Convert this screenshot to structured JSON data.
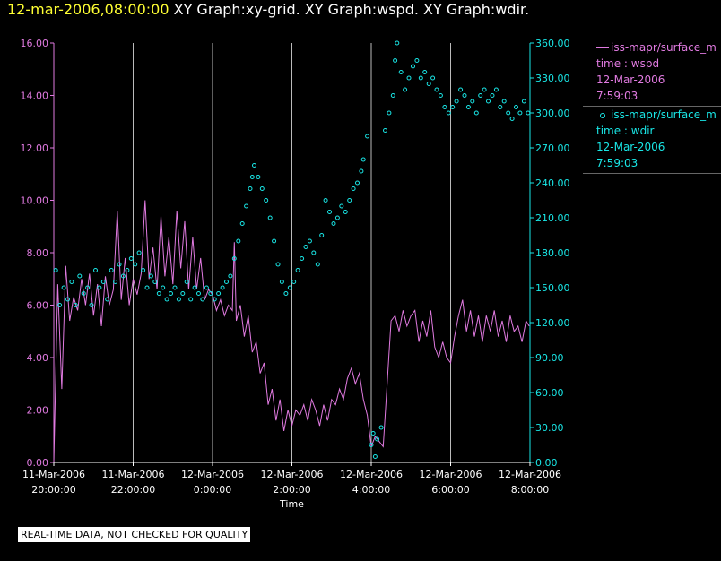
{
  "header": {
    "date_time": "12-mar-2006,08:00:00",
    "graphs": "XY Graph:xy-grid.  XY Graph:wspd.  XY Graph:wdir."
  },
  "legend": {
    "series1": {
      "name": "iss-mapr/surface_m",
      "line1": "time : wspd",
      "line2": "12-Mar-2006",
      "line3": "7:59:03"
    },
    "series2": {
      "name": "iss-mapr/surface_m",
      "line1": "time : wdir",
      "line2": "12-Mar-2006",
      "line3": "7:59:03"
    }
  },
  "footer": {
    "notice": "REAL-TIME DATA, NOT CHECKED FOR QUALITY"
  },
  "colors": {
    "wspd": "#e07ae0",
    "wdir": "#19e6e6",
    "grid": "#bbbbbb",
    "title": "#ffff33"
  },
  "chart_data": {
    "type": "line",
    "xlabel": "Time",
    "x_range_hours": [
      -4.0,
      8.0
    ],
    "x_ticks": [
      {
        "h": -4,
        "date": "11-Mar-2006",
        "time": "20:00:00"
      },
      {
        "h": -2,
        "date": "11-Mar-2006",
        "time": "22:00:00"
      },
      {
        "h": 0,
        "date": "12-Mar-2006",
        "time": "0:00:00"
      },
      {
        "h": 2,
        "date": "12-Mar-2006",
        "time": "2:00:00"
      },
      {
        "h": 4,
        "date": "12-Mar-2006",
        "time": "4:00:00"
      },
      {
        "h": 6,
        "date": "12-Mar-2006",
        "time": "6:00:00"
      },
      {
        "h": 8,
        "date": "12-Mar-2006",
        "time": "8:00:00"
      }
    ],
    "y_left": {
      "ylim": [
        0,
        16
      ],
      "ticks": [
        "0.00",
        "2.00",
        "4.00",
        "6.00",
        "8.00",
        "10.00",
        "12.00",
        "14.00",
        "16.00"
      ]
    },
    "y_right": {
      "ylim": [
        0,
        360
      ],
      "ticks": [
        "0.00",
        "30.00",
        "60.00",
        "90.00",
        "120.00",
        "150.00",
        "180.00",
        "210.00",
        "240.00",
        "270.00",
        "300.00",
        "330.00",
        "360.00"
      ]
    },
    "grid": "vertical",
    "series": [
      {
        "name": "wspd",
        "axis": "left",
        "style": "line",
        "points": [
          [
            -4.0,
            0.0
          ],
          [
            -3.9,
            6.8
          ],
          [
            -3.8,
            2.8
          ],
          [
            -3.7,
            7.5
          ],
          [
            -3.6,
            5.4
          ],
          [
            -3.5,
            6.3
          ],
          [
            -3.4,
            5.8
          ],
          [
            -3.3,
            7.0
          ],
          [
            -3.2,
            6.0
          ],
          [
            -3.1,
            7.2
          ],
          [
            -3.0,
            5.6
          ],
          [
            -2.9,
            6.8
          ],
          [
            -2.8,
            5.2
          ],
          [
            -2.7,
            7.1
          ],
          [
            -2.6,
            6.0
          ],
          [
            -2.5,
            6.6
          ],
          [
            -2.4,
            9.6
          ],
          [
            -2.3,
            6.2
          ],
          [
            -2.2,
            7.8
          ],
          [
            -2.1,
            6.0
          ],
          [
            -2.0,
            7.0
          ],
          [
            -1.9,
            6.4
          ],
          [
            -1.8,
            7.2
          ],
          [
            -1.7,
            10.0
          ],
          [
            -1.6,
            7.0
          ],
          [
            -1.5,
            8.2
          ],
          [
            -1.4,
            6.6
          ],
          [
            -1.3,
            9.4
          ],
          [
            -1.2,
            7.1
          ],
          [
            -1.1,
            8.6
          ],
          [
            -1.0,
            6.8
          ],
          [
            -0.9,
            9.6
          ],
          [
            -0.8,
            7.4
          ],
          [
            -0.7,
            9.2
          ],
          [
            -0.6,
            6.6
          ],
          [
            -0.5,
            8.6
          ],
          [
            -0.4,
            6.6
          ],
          [
            -0.3,
            7.8
          ],
          [
            -0.2,
            6.2
          ],
          [
            -0.1,
            6.6
          ],
          [
            0.0,
            6.4
          ],
          [
            0.1,
            5.8
          ],
          [
            0.2,
            6.2
          ],
          [
            0.3,
            5.6
          ],
          [
            0.4,
            6.0
          ],
          [
            0.5,
            5.8
          ],
          [
            0.55,
            8.4
          ],
          [
            0.6,
            5.4
          ],
          [
            0.7,
            6.0
          ],
          [
            0.8,
            4.8
          ],
          [
            0.9,
            5.6
          ],
          [
            1.0,
            4.2
          ],
          [
            1.1,
            4.6
          ],
          [
            1.2,
            3.4
          ],
          [
            1.3,
            3.8
          ],
          [
            1.4,
            2.2
          ],
          [
            1.5,
            2.8
          ],
          [
            1.6,
            1.6
          ],
          [
            1.7,
            2.4
          ],
          [
            1.8,
            1.2
          ],
          [
            1.9,
            2.0
          ],
          [
            2.0,
            1.4
          ],
          [
            2.1,
            2.0
          ],
          [
            2.2,
            1.8
          ],
          [
            2.3,
            2.2
          ],
          [
            2.4,
            1.6
          ],
          [
            2.5,
            2.4
          ],
          [
            2.6,
            2.0
          ],
          [
            2.7,
            1.4
          ],
          [
            2.8,
            2.2
          ],
          [
            2.9,
            1.6
          ],
          [
            3.0,
            2.4
          ],
          [
            3.1,
            2.2
          ],
          [
            3.2,
            2.8
          ],
          [
            3.3,
            2.4
          ],
          [
            3.4,
            3.2
          ],
          [
            3.5,
            3.6
          ],
          [
            3.6,
            3.0
          ],
          [
            3.7,
            3.4
          ],
          [
            3.8,
            2.4
          ],
          [
            3.9,
            1.8
          ],
          [
            4.0,
            0.6
          ],
          [
            4.1,
            1.0
          ],
          [
            4.2,
            0.8
          ],
          [
            4.3,
            0.6
          ],
          [
            4.4,
            3.0
          ],
          [
            4.5,
            5.4
          ],
          [
            4.6,
            5.6
          ],
          [
            4.7,
            5.0
          ],
          [
            4.8,
            5.8
          ],
          [
            4.9,
            5.2
          ],
          [
            5.0,
            5.6
          ],
          [
            5.1,
            5.8
          ],
          [
            5.2,
            4.6
          ],
          [
            5.3,
            5.4
          ],
          [
            5.4,
            4.8
          ],
          [
            5.5,
            5.8
          ],
          [
            5.6,
            4.4
          ],
          [
            5.7,
            4.0
          ],
          [
            5.8,
            4.6
          ],
          [
            5.9,
            4.0
          ],
          [
            6.0,
            3.8
          ],
          [
            6.1,
            4.8
          ],
          [
            6.2,
            5.6
          ],
          [
            6.3,
            6.2
          ],
          [
            6.4,
            5.0
          ],
          [
            6.5,
            5.8
          ],
          [
            6.6,
            4.8
          ],
          [
            6.7,
            5.6
          ],
          [
            6.8,
            4.6
          ],
          [
            6.9,
            5.6
          ],
          [
            7.0,
            5.0
          ],
          [
            7.1,
            5.8
          ],
          [
            7.2,
            4.8
          ],
          [
            7.3,
            5.4
          ],
          [
            7.4,
            4.6
          ],
          [
            7.5,
            5.6
          ],
          [
            7.6,
            5.0
          ],
          [
            7.7,
            5.2
          ],
          [
            7.8,
            4.6
          ],
          [
            7.9,
            5.4
          ],
          [
            7.98,
            5.2
          ]
        ]
      },
      {
        "name": "wdir",
        "axis": "right",
        "style": "circles",
        "points": [
          [
            -3.95,
            165
          ],
          [
            -3.85,
            135
          ],
          [
            -3.75,
            150
          ],
          [
            -3.65,
            140
          ],
          [
            -3.55,
            155
          ],
          [
            -3.45,
            135
          ],
          [
            -3.35,
            160
          ],
          [
            -3.25,
            145
          ],
          [
            -3.15,
            150
          ],
          [
            -3.05,
            135
          ],
          [
            -2.95,
            165
          ],
          [
            -2.85,
            150
          ],
          [
            -2.75,
            155
          ],
          [
            -2.65,
            140
          ],
          [
            -2.55,
            165
          ],
          [
            -2.45,
            155
          ],
          [
            -2.35,
            170
          ],
          [
            -2.25,
            160
          ],
          [
            -2.15,
            165
          ],
          [
            -2.05,
            175
          ],
          [
            -1.95,
            170
          ],
          [
            -1.85,
            180
          ],
          [
            -1.75,
            165
          ],
          [
            -1.65,
            150
          ],
          [
            -1.55,
            160
          ],
          [
            -1.45,
            155
          ],
          [
            -1.35,
            145
          ],
          [
            -1.25,
            150
          ],
          [
            -1.15,
            140
          ],
          [
            -1.05,
            145
          ],
          [
            -0.95,
            150
          ],
          [
            -0.85,
            140
          ],
          [
            -0.75,
            145
          ],
          [
            -0.65,
            155
          ],
          [
            -0.55,
            140
          ],
          [
            -0.45,
            150
          ],
          [
            -0.35,
            145
          ],
          [
            -0.25,
            140
          ],
          [
            -0.15,
            150
          ],
          [
            -0.05,
            145
          ],
          [
            0.05,
            140
          ],
          [
            0.15,
            145
          ],
          [
            0.25,
            150
          ],
          [
            0.35,
            155
          ],
          [
            0.45,
            160
          ],
          [
            0.55,
            175
          ],
          [
            0.65,
            190
          ],
          [
            0.75,
            205
          ],
          [
            0.85,
            220
          ],
          [
            0.95,
            235
          ],
          [
            1.0,
            245
          ],
          [
            1.05,
            255
          ],
          [
            1.15,
            245
          ],
          [
            1.25,
            235
          ],
          [
            1.35,
            225
          ],
          [
            1.45,
            210
          ],
          [
            1.55,
            190
          ],
          [
            1.65,
            170
          ],
          [
            1.75,
            155
          ],
          [
            1.85,
            145
          ],
          [
            1.95,
            150
          ],
          [
            2.05,
            155
          ],
          [
            2.15,
            165
          ],
          [
            2.25,
            175
          ],
          [
            2.35,
            185
          ],
          [
            2.45,
            190
          ],
          [
            2.55,
            180
          ],
          [
            2.65,
            170
          ],
          [
            2.75,
            195
          ],
          [
            2.85,
            225
          ],
          [
            2.95,
            215
          ],
          [
            3.05,
            205
          ],
          [
            3.15,
            210
          ],
          [
            3.25,
            220
          ],
          [
            3.35,
            215
          ],
          [
            3.45,
            225
          ],
          [
            3.55,
            235
          ],
          [
            3.65,
            240
          ],
          [
            3.75,
            250
          ],
          [
            3.8,
            260
          ],
          [
            3.9,
            280
          ],
          [
            4.0,
            15
          ],
          [
            4.05,
            25
          ],
          [
            4.1,
            5
          ],
          [
            4.15,
            20
          ],
          [
            4.25,
            30
          ],
          [
            4.35,
            285
          ],
          [
            4.45,
            300
          ],
          [
            4.55,
            315
          ],
          [
            4.6,
            345
          ],
          [
            4.65,
            360
          ],
          [
            4.75,
            335
          ],
          [
            4.85,
            320
          ],
          [
            4.95,
            330
          ],
          [
            5.05,
            340
          ],
          [
            5.15,
            345
          ],
          [
            5.25,
            330
          ],
          [
            5.35,
            335
          ],
          [
            5.45,
            325
          ],
          [
            5.55,
            330
          ],
          [
            5.65,
            320
          ],
          [
            5.75,
            315
          ],
          [
            5.85,
            305
          ],
          [
            5.95,
            300
          ],
          [
            6.05,
            305
          ],
          [
            6.15,
            310
          ],
          [
            6.25,
            320
          ],
          [
            6.35,
            315
          ],
          [
            6.45,
            305
          ],
          [
            6.55,
            310
          ],
          [
            6.65,
            300
          ],
          [
            6.75,
            315
          ],
          [
            6.85,
            320
          ],
          [
            6.95,
            310
          ],
          [
            7.05,
            315
          ],
          [
            7.15,
            320
          ],
          [
            7.25,
            305
          ],
          [
            7.35,
            310
          ],
          [
            7.45,
            300
          ],
          [
            7.55,
            295
          ],
          [
            7.65,
            305
          ],
          [
            7.75,
            300
          ],
          [
            7.85,
            310
          ],
          [
            7.95,
            300
          ]
        ]
      }
    ]
  }
}
